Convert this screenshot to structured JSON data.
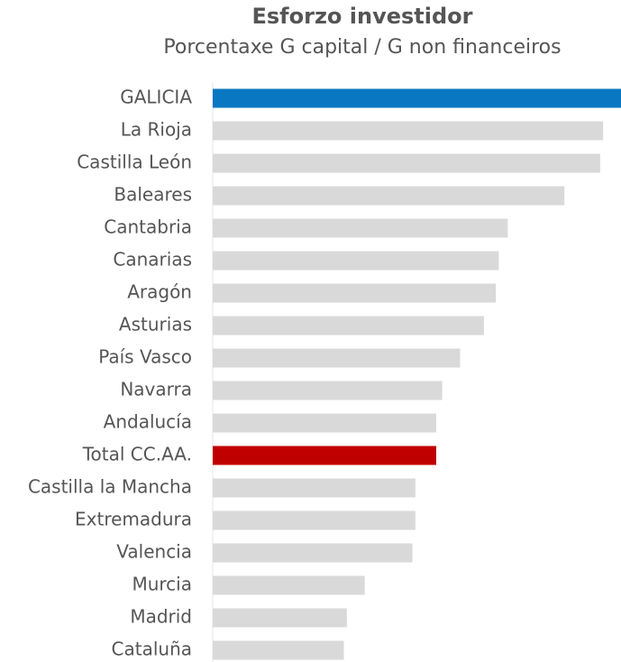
{
  "chart_data": {
    "type": "hbar",
    "title": "Esforzo investidor",
    "subtitle": "Porcentaxe G capital / G non financeiros",
    "categories": [
      "GALICIA",
      "La Rioja",
      "Castilla León",
      "Baleares",
      "Cantabria",
      "Canarias",
      "Aragón",
      "Asturias",
      "País Vasco",
      "Navarra",
      "Andalucía",
      "Total CC.AA.",
      "Castilla la Mancha",
      "Extremadura",
      "Valencia",
      "Murcia",
      "Madrid",
      "Cataluña"
    ],
    "values": [
      13.7,
      13.1,
      13.0,
      11.8,
      9.9,
      9.6,
      9.5,
      9.1,
      8.3,
      7.7,
      7.5,
      7.5,
      6.8,
      6.8,
      6.7,
      5.1,
      4.5,
      4.4
    ],
    "colors": [
      "#0a77c2",
      "#d9d9d9",
      "#d9d9d9",
      "#d9d9d9",
      "#d9d9d9",
      "#d9d9d9",
      "#d9d9d9",
      "#d9d9d9",
      "#d9d9d9",
      "#d9d9d9",
      "#d9d9d9",
      "#c00000",
      "#d9d9d9",
      "#d9d9d9",
      "#d9d9d9",
      "#d9d9d9",
      "#d9d9d9",
      "#d9d9d9"
    ]
  }
}
